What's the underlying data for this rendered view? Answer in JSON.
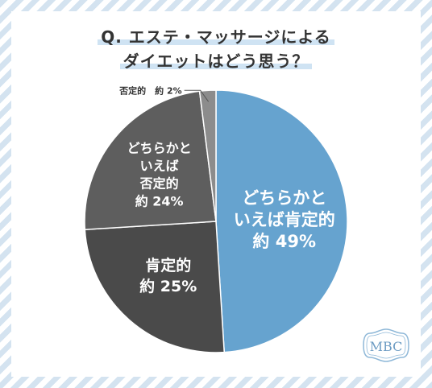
{
  "title": {
    "line1": "Q. エステ・マッサージによる",
    "line2": "ダイエットはどう思う？"
  },
  "brand": {
    "logo_text": "MBC"
  },
  "colors": {
    "slice_yes_maybe": "#66a3cf",
    "slice_yes": "#4a4a4a",
    "slice_no_maybe": "#5e5e5e",
    "slice_no": "#8c8c8c",
    "background_stripe": "#d4e3f0"
  },
  "chart_data": {
    "type": "pie",
    "slices": [
      {
        "lines": [
          "どちらかと",
          "いえば肯定的",
          "約 49%"
        ],
        "value": 49
      },
      {
        "lines": [
          "肯定的",
          "約 25%"
        ],
        "value": 25
      },
      {
        "lines": [
          "どちらかと",
          "いえば",
          "否定的",
          "約 24%"
        ],
        "value": 24
      },
      {
        "lines": [
          "否定的　約 2%"
        ],
        "value": 2
      }
    ]
  }
}
